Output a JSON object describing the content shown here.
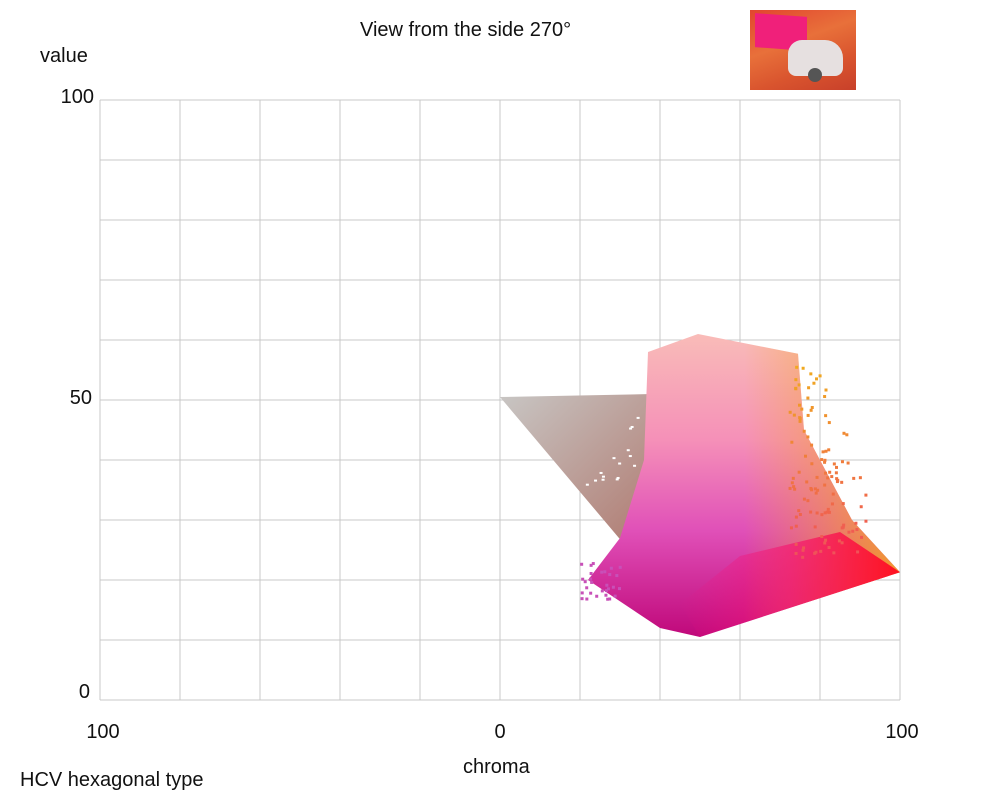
{
  "chart_data": {
    "type": "scatter",
    "title": "View from the side 270°",
    "subtitle": "HCV hexagonal type",
    "xlabel": "chroma",
    "ylabel": "value",
    "x_ticks": [
      "100",
      "0",
      "100"
    ],
    "y_ticks": [
      "100",
      "50",
      "0"
    ],
    "xlim": [
      -100,
      100
    ],
    "ylim": [
      0,
      100
    ],
    "grid": true,
    "x_grid_step": 20,
    "y_grid_step": 10,
    "regions": [
      {
        "name": "gray-wedge",
        "points": [
          [
            0,
            50.5
          ],
          [
            38,
            51
          ],
          [
            37,
            42
          ],
          [
            31,
            26
          ]
        ],
        "colors": [
          "#c4c0be",
          "#b88a7c"
        ]
      },
      {
        "name": "main-body",
        "points": [
          [
            37,
            58
          ],
          [
            49.5,
            61
          ],
          [
            74.5,
            57.7
          ],
          [
            76,
            45
          ],
          [
            88,
            30
          ],
          [
            100,
            21.3
          ],
          [
            50,
            10.5
          ],
          [
            40,
            12
          ],
          [
            22,
            20
          ],
          [
            30,
            27
          ],
          [
            36,
            40
          ]
        ],
        "colors": [
          "#f9b8b8",
          "#e060c0",
          "#c0108a",
          "#f01060",
          "#f0a020"
        ]
      }
    ],
    "colors": {
      "grid": "#c8c8c8",
      "gray": "#c4c0be",
      "pink": "#f9b8b8",
      "magenta": "#c0108a",
      "red": "#ff1020",
      "orange": "#f5a623"
    }
  }
}
